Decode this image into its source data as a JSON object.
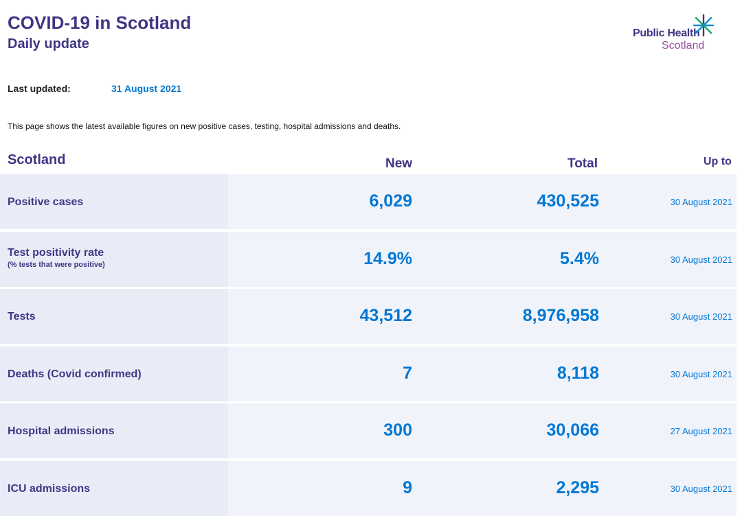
{
  "header": {
    "title": "COVID-19 in Scotland",
    "subtitle": "Daily update",
    "logo_line1": "Public Health",
    "logo_line2": "Scotland"
  },
  "updated": {
    "label": "Last updated:",
    "value": "31 August 2021"
  },
  "intro": "This page shows the latest available figures on new positive cases, testing, hospital admissions and deaths.",
  "table": {
    "columns": {
      "region": "Scotland",
      "new": "New",
      "total": "Total",
      "up_to": "Up to"
    },
    "rows": [
      {
        "label": "Positive cases",
        "sub": "",
        "new": "6,029",
        "total": "430,525",
        "up_to": "30 August 2021"
      },
      {
        "label": "Test positivity rate",
        "sub": "(% tests that were positive)",
        "new": "14.9%",
        "total": "5.4%",
        "up_to": "30 August 2021"
      },
      {
        "label": "Tests",
        "sub": "",
        "new": "43,512",
        "total": "8,976,958",
        "up_to": "30 August 2021"
      },
      {
        "label": "Deaths (Covid confirmed)",
        "sub": "",
        "new": "7",
        "total": "8,118",
        "up_to": "30 August 2021"
      },
      {
        "label": "Hospital admissions",
        "sub": "",
        "new": "300",
        "total": "30,066",
        "up_to": "27 August 2021"
      },
      {
        "label": "ICU admissions",
        "sub": "",
        "new": "9",
        "total": "2,295",
        "up_to": "30 August 2021"
      }
    ]
  },
  "colors": {
    "brand_purple": "#3f3685",
    "accent_blue": "#0078d4",
    "logo_magenta": "#9b4d9e"
  }
}
